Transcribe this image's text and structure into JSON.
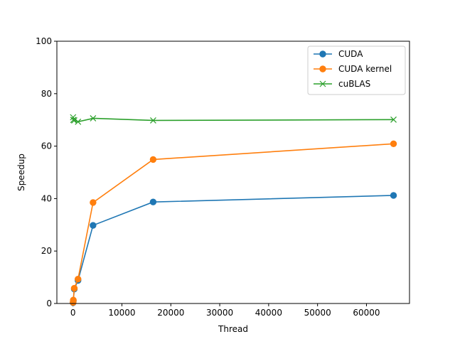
{
  "chart_data": {
    "type": "line",
    "title": "",
    "xlabel": "Thread",
    "ylabel": "Speedup",
    "xlim": [
      -3300,
      68800
    ],
    "ylim": [
      0,
      100
    ],
    "xticks": [
      0,
      10000,
      20000,
      30000,
      40000,
      50000,
      60000
    ],
    "yticks": [
      0,
      20,
      40,
      60,
      80,
      100
    ],
    "grid": false,
    "legend_position": "upper right",
    "series": [
      {
        "name": "CUDA",
        "color": "#1f77b4",
        "marker": "circle",
        "x": [
          16,
          64,
          256,
          1024,
          4096,
          16384,
          65536
        ],
        "y": [
          0.3,
          1.0,
          5.5,
          8.8,
          29.8,
          38.7,
          41.2
        ]
      },
      {
        "name": "CUDA kernel",
        "color": "#ff7f0e",
        "marker": "circle",
        "x": [
          16,
          64,
          256,
          1024,
          4096,
          16384,
          65536
        ],
        "y": [
          0.4,
          1.3,
          5.8,
          9.3,
          38.5,
          54.9,
          60.9
        ]
      },
      {
        "name": "cuBLAS",
        "color": "#2ca02c",
        "marker": "x",
        "x": [
          16,
          64,
          256,
          1024,
          4096,
          16384,
          65536
        ],
        "y": [
          71.0,
          70.0,
          69.8,
          69.3,
          70.6,
          69.8,
          70.1
        ]
      }
    ]
  }
}
